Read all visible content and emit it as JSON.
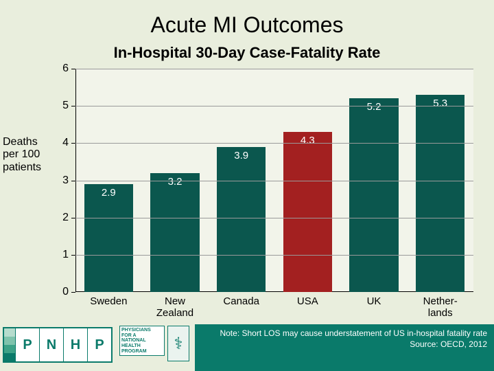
{
  "background_color": "#e9eedd",
  "title": {
    "text": "Acute MI Outcomes",
    "fontsize": 32,
    "color": "#000000"
  },
  "subtitle": {
    "text": "In-Hospital 30-Day Case-Fatality Rate",
    "fontsize": 22,
    "color": "#000000"
  },
  "ylabel": "Deaths\nper 100\npatients",
  "chart": {
    "type": "bar",
    "plot_bg": "#f2f4ea",
    "grid_color": "#9a9a9a",
    "axis_color": "#000000",
    "ylim": [
      0,
      6
    ],
    "ytick_step": 1,
    "bar_width_pct": 74,
    "label_fontsize": 15,
    "value_label_color": "#ffffff",
    "categories": [
      "Sweden",
      "New\nZealand",
      "Canada",
      "USA",
      "UK",
      "Nether-\nlands"
    ],
    "values": [
      2.9,
      3.2,
      3.9,
      4.3,
      5.2,
      5.3
    ],
    "bar_colors": [
      "#0b574e",
      "#0b574e",
      "#0b574e",
      "#a32020",
      "#0b574e",
      "#0b574e"
    ]
  },
  "footer": {
    "right_bg": "#0a7a6a",
    "note": "Note: Short LOS may cause understatement of US in-hospital fatality rate",
    "source": "Source: OECD, 2012",
    "logo_letters": [
      "P",
      "N",
      "H",
      "P"
    ],
    "stripe_colors": [
      "#b6dccd",
      "#7fc3ac",
      "#3da287",
      "#0a7a6a"
    ],
    "seal_text": "PHYSICIANS\nFOR A\nNATIONAL\nHEALTH\nPROGRAM",
    "caduceus": "⚕"
  }
}
